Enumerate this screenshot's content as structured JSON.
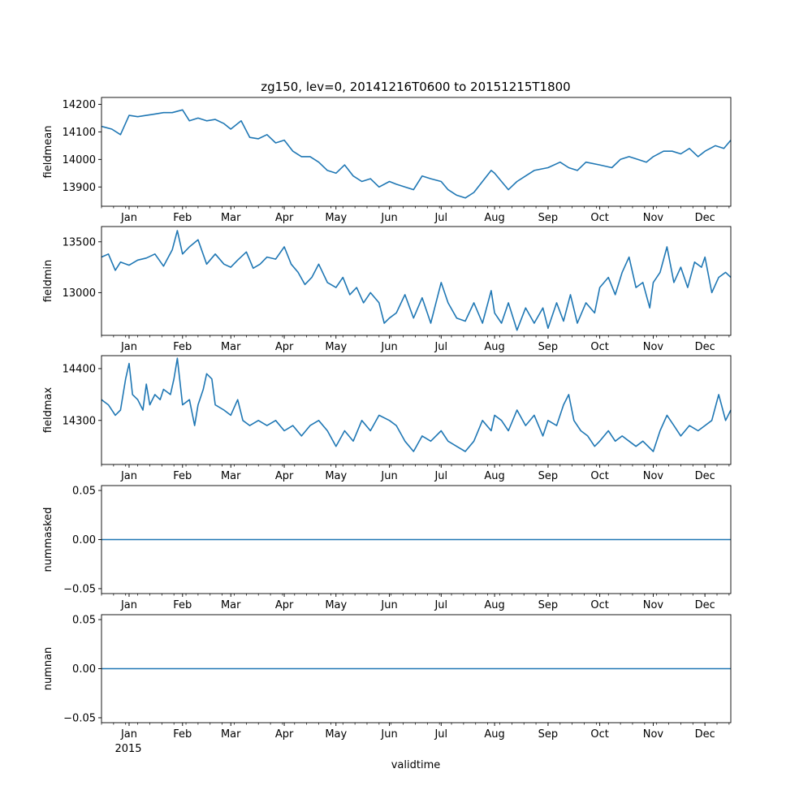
{
  "figure": {
    "title": "zg150, lev=0, 20141216T0600 to 20151215T1800",
    "xlabel": "validtime",
    "year_label": "2015"
  },
  "x_axis": {
    "range_days": [
      -16,
      349
    ],
    "month_ticks": [
      {
        "label": "Jan",
        "day": 0
      },
      {
        "label": "Feb",
        "day": 31
      },
      {
        "label": "Mar",
        "day": 59
      },
      {
        "label": "Apr",
        "day": 90
      },
      {
        "label": "May",
        "day": 120
      },
      {
        "label": "Jun",
        "day": 151
      },
      {
        "label": "Jul",
        "day": 181
      },
      {
        "label": "Aug",
        "day": 212
      },
      {
        "label": "Sep",
        "day": 243
      },
      {
        "label": "Oct",
        "day": 273
      },
      {
        "label": "Nov",
        "day": 304
      },
      {
        "label": "Dec",
        "day": 334
      }
    ]
  },
  "colors": {
    "line": "#1f77b4",
    "axes": "#000000"
  },
  "chart_data": [
    {
      "type": "line",
      "name": "fieldmean",
      "ylabel": "fieldmean",
      "ylim": [
        13830,
        14225
      ],
      "yticks": [
        {
          "value": 13900,
          "label": "13900"
        },
        {
          "value": 14000,
          "label": "14000"
        },
        {
          "value": 14100,
          "label": "14100"
        },
        {
          "value": 14200,
          "label": "14200"
        }
      ],
      "x": [
        -16,
        -10,
        -5,
        0,
        5,
        10,
        15,
        20,
        25,
        31,
        35,
        40,
        45,
        50,
        55,
        59,
        65,
        70,
        75,
        80,
        85,
        90,
        95,
        100,
        105,
        110,
        115,
        120,
        125,
        130,
        135,
        140,
        145,
        151,
        155,
        160,
        165,
        170,
        175,
        181,
        185,
        190,
        195,
        200,
        205,
        210,
        212,
        216,
        220,
        225,
        230,
        235,
        243,
        250,
        255,
        260,
        265,
        273,
        280,
        285,
        290,
        295,
        300,
        304,
        310,
        315,
        320,
        325,
        330,
        334,
        340,
        345,
        349
      ],
      "values": [
        14120,
        14110,
        14090,
        14160,
        14155,
        14160,
        14165,
        14170,
        14170,
        14180,
        14140,
        14150,
        14140,
        14145,
        14130,
        14110,
        14140,
        14080,
        14075,
        14090,
        14060,
        14070,
        14030,
        14010,
        14010,
        13990,
        13960,
        13950,
        13980,
        13940,
        13920,
        13930,
        13900,
        13920,
        13910,
        13900,
        13890,
        13940,
        13930,
        13920,
        13890,
        13870,
        13860,
        13880,
        13920,
        13960,
        13950,
        13920,
        13890,
        13920,
        13940,
        13960,
        13970,
        13990,
        13970,
        13960,
        13990,
        13980,
        13970,
        14000,
        14010,
        14000,
        13990,
        14010,
        14030,
        14030,
        14020,
        14040,
        14010,
        14030,
        14050,
        14040,
        14070
      ]
    },
    {
      "type": "line",
      "name": "fieldmin",
      "ylabel": "fieldmin",
      "ylim": [
        12580,
        13650
      ],
      "yticks": [
        {
          "value": 13000,
          "label": "13000"
        },
        {
          "value": 13500,
          "label": "13500"
        }
      ],
      "x": [
        -16,
        -12,
        -8,
        -5,
        0,
        5,
        10,
        15,
        20,
        25,
        28,
        31,
        35,
        40,
        45,
        50,
        55,
        59,
        63,
        68,
        72,
        76,
        80,
        85,
        90,
        94,
        98,
        102,
        106,
        110,
        115,
        120,
        124,
        128,
        132,
        136,
        140,
        145,
        148,
        151,
        155,
        160,
        165,
        170,
        175,
        181,
        185,
        190,
        195,
        200,
        205,
        210,
        212,
        216,
        220,
        225,
        230,
        235,
        240,
        243,
        248,
        252,
        256,
        260,
        265,
        270,
        273,
        278,
        282,
        286,
        290,
        294,
        298,
        302,
        304,
        308,
        312,
        316,
        320,
        324,
        328,
        332,
        334,
        338,
        342,
        346,
        349
      ],
      "values": [
        13350,
        13380,
        13220,
        13300,
        13270,
        13320,
        13340,
        13380,
        13260,
        13420,
        13610,
        13380,
        13450,
        13520,
        13280,
        13380,
        13280,
        13250,
        13320,
        13400,
        13240,
        13280,
        13350,
        13330,
        13450,
        13280,
        13200,
        13080,
        13150,
        13280,
        13100,
        13050,
        13150,
        12980,
        13050,
        12900,
        13000,
        12900,
        12700,
        12750,
        12800,
        12980,
        12750,
        12950,
        12700,
        13100,
        12900,
        12750,
        12720,
        12900,
        12700,
        13020,
        12800,
        12700,
        12900,
        12630,
        12850,
        12700,
        12850,
        12650,
        12900,
        12720,
        12980,
        12700,
        12900,
        12800,
        13050,
        13150,
        12980,
        13200,
        13350,
        13050,
        13100,
        12850,
        13100,
        13200,
        13450,
        13100,
        13250,
        13050,
        13300,
        13250,
        13350,
        13000,
        13150,
        13200,
        13150
      ]
    },
    {
      "type": "line",
      "name": "fieldmax",
      "ylabel": "fieldmax",
      "ylim": [
        14215,
        14425
      ],
      "yticks": [
        {
          "value": 14300,
          "label": "14300"
        },
        {
          "value": 14400,
          "label": "14400"
        }
      ],
      "x": [
        -16,
        -12,
        -8,
        -5,
        -2,
        0,
        2,
        5,
        8,
        10,
        12,
        15,
        18,
        20,
        24,
        26,
        28,
        30,
        31,
        35,
        38,
        40,
        43,
        45,
        48,
        50,
        55,
        59,
        63,
        66,
        70,
        75,
        80,
        85,
        90,
        95,
        100,
        105,
        110,
        115,
        120,
        125,
        130,
        135,
        140,
        145,
        151,
        155,
        160,
        165,
        170,
        175,
        181,
        185,
        190,
        195,
        200,
        205,
        210,
        212,
        216,
        220,
        225,
        230,
        235,
        240,
        243,
        248,
        252,
        255,
        258,
        262,
        266,
        270,
        273,
        278,
        282,
        286,
        290,
        294,
        298,
        304,
        308,
        312,
        316,
        320,
        325,
        330,
        334,
        338,
        342,
        346,
        349
      ],
      "values": [
        14340,
        14330,
        14310,
        14320,
        14380,
        14410,
        14350,
        14340,
        14320,
        14370,
        14330,
        14350,
        14340,
        14360,
        14350,
        14380,
        14420,
        14360,
        14330,
        14340,
        14290,
        14330,
        14360,
        14390,
        14380,
        14330,
        14320,
        14310,
        14340,
        14300,
        14290,
        14300,
        14290,
        14300,
        14280,
        14290,
        14270,
        14290,
        14300,
        14280,
        14250,
        14280,
        14260,
        14300,
        14280,
        14310,
        14300,
        14290,
        14260,
        14240,
        14270,
        14260,
        14280,
        14260,
        14250,
        14240,
        14260,
        14300,
        14280,
        14310,
        14300,
        14280,
        14320,
        14290,
        14310,
        14270,
        14300,
        14290,
        14330,
        14350,
        14300,
        14280,
        14270,
        14250,
        14260,
        14280,
        14260,
        14270,
        14260,
        14250,
        14260,
        14240,
        14280,
        14310,
        14290,
        14270,
        14290,
        14280,
        14290,
        14300,
        14350,
        14300,
        14320
      ]
    },
    {
      "type": "line",
      "name": "nummasked",
      "ylabel": "nummasked",
      "ylim": [
        -0.055,
        0.055
      ],
      "yticks": [
        {
          "value": -0.05,
          "label": "−0.05"
        },
        {
          "value": 0,
          "label": "0.00"
        },
        {
          "value": 0.05,
          "label": "0.05"
        }
      ],
      "x": [
        -16,
        349
      ],
      "values": [
        0,
        0
      ]
    },
    {
      "type": "line",
      "name": "numnan",
      "ylabel": "numnan",
      "ylim": [
        -0.055,
        0.055
      ],
      "yticks": [
        {
          "value": -0.05,
          "label": "−0.05"
        },
        {
          "value": 0,
          "label": "0.00"
        },
        {
          "value": 0.05,
          "label": "0.05"
        }
      ],
      "x": [
        -16,
        349
      ],
      "values": [
        0,
        0
      ]
    }
  ]
}
